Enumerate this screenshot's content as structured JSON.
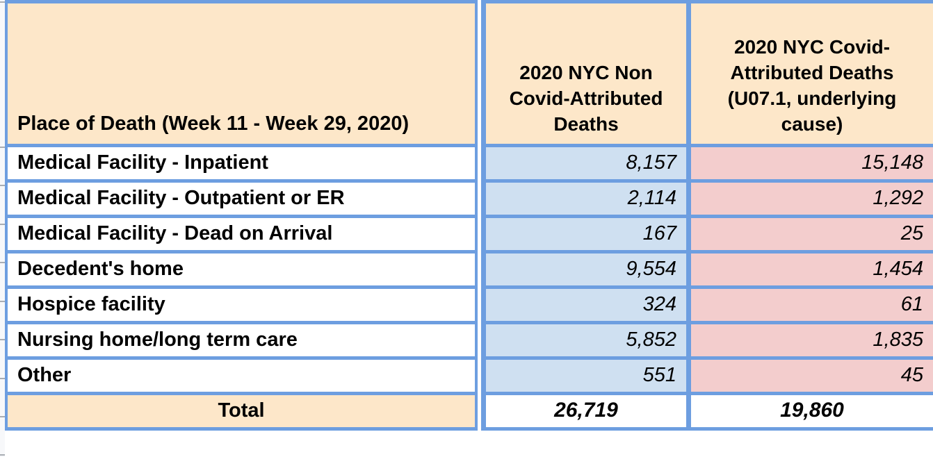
{
  "table": {
    "columns": [
      {
        "header": "Place of Death (Week 11 - Week 29, 2020)"
      },
      {
        "header": "2020 NYC Non Covid-Attributed Deaths"
      },
      {
        "header": "2020 NYC Covid-Attributed Deaths (U07.1, underlying cause)"
      }
    ],
    "rows": [
      {
        "label": "Medical Facility - Inpatient",
        "non_covid": "8,157",
        "covid": "15,148"
      },
      {
        "label": "Medical Facility - Outpatient or ER",
        "non_covid": "2,114",
        "covid": "1,292"
      },
      {
        "label": "Medical Facility - Dead on Arrival",
        "non_covid": "167",
        "covid": "25"
      },
      {
        "label": "Decedent's home",
        "non_covid": "9,554",
        "covid": "1,454"
      },
      {
        "label": "Hospice facility",
        "non_covid": "324",
        "covid": "61"
      },
      {
        "label": "Nursing home/long term care",
        "non_covid": "5,852",
        "covid": "1,835"
      },
      {
        "label": "Other",
        "non_covid": "551",
        "covid": "45"
      }
    ],
    "total": {
      "label": "Total",
      "non_covid": "26,719",
      "covid": "19,860"
    },
    "colors": {
      "header_fill": "#fde7c9",
      "non_covid_fill": "#cfe0f1",
      "covid_fill": "#f3cdcd",
      "border": "#6d9ee0",
      "total_value_fill": "#ffffff"
    }
  },
  "chart_data": {
    "type": "table",
    "title": "Place of Death (Week 11 - Week 29, 2020)",
    "columns": [
      "Place of Death (Week 11 - Week 29, 2020)",
      "2020 NYC Non Covid-Attributed Deaths",
      "2020 NYC Covid-Attributed Deaths (U07.1, underlying cause)"
    ],
    "rows": [
      [
        "Medical Facility - Inpatient",
        8157,
        15148
      ],
      [
        "Medical Facility - Outpatient or ER",
        2114,
        1292
      ],
      [
        "Medical Facility - Dead on Arrival",
        167,
        25
      ],
      [
        "Decedent's home",
        9554,
        1454
      ],
      [
        "Hospice facility",
        324,
        61
      ],
      [
        "Nursing home/long term care",
        5852,
        1835
      ],
      [
        "Other",
        551,
        45
      ]
    ],
    "total_row": [
      "Total",
      26719,
      19860
    ]
  }
}
